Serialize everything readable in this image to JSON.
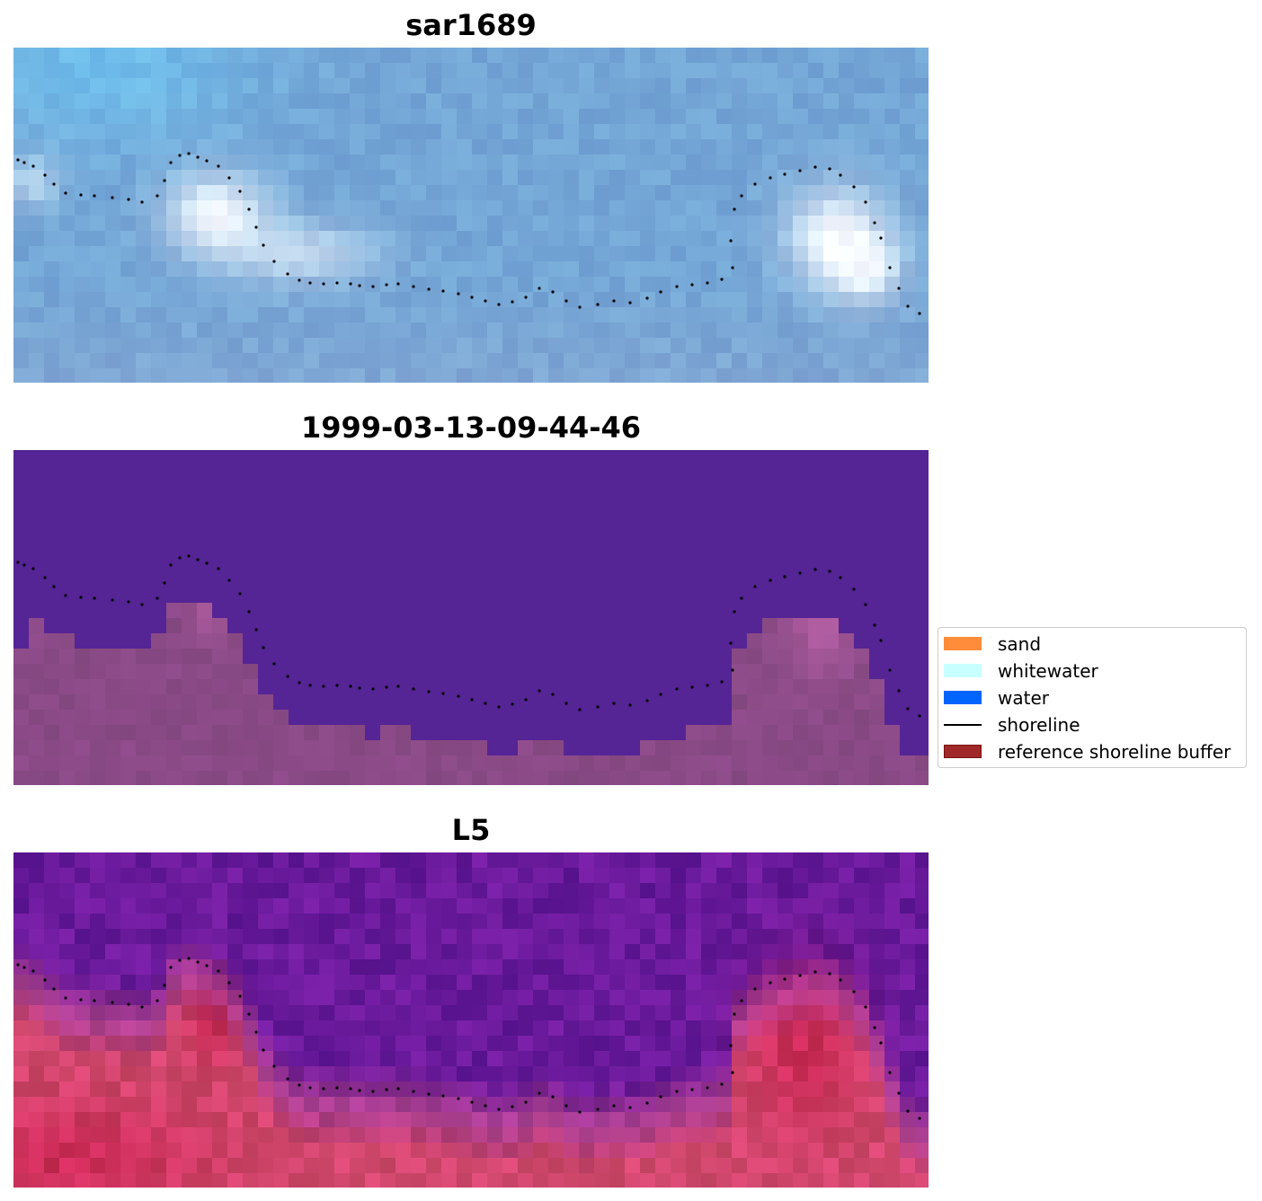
{
  "panels": [
    {
      "title": "sar1689",
      "kind": "sar-image"
    },
    {
      "title": "1999-03-13-09-44-46",
      "kind": "classified-image"
    },
    {
      "title": "L5",
      "kind": "landsat-image"
    }
  ],
  "legend": {
    "placement": "center-right",
    "items": [
      {
        "label": "sand",
        "type": "patch",
        "color": "#ff8c3a"
      },
      {
        "label": "whitewater",
        "type": "patch",
        "color": "#c8ffff"
      },
      {
        "label": "water",
        "type": "patch",
        "color": "#0064ff"
      },
      {
        "label": "shoreline",
        "type": "line",
        "color": "#000000"
      },
      {
        "label": "reference shoreline buffer",
        "type": "patch",
        "color": "#a02828",
        "border": "#7a1010"
      }
    ]
  },
  "colors": {
    "sar_base": "#74a6d6",
    "classified_water": "#552495",
    "classified_land": "#8a4a86",
    "l5_water": "#6a1a9c",
    "l5_land": "#d2486e",
    "shoreline_dots": "#000000"
  }
}
